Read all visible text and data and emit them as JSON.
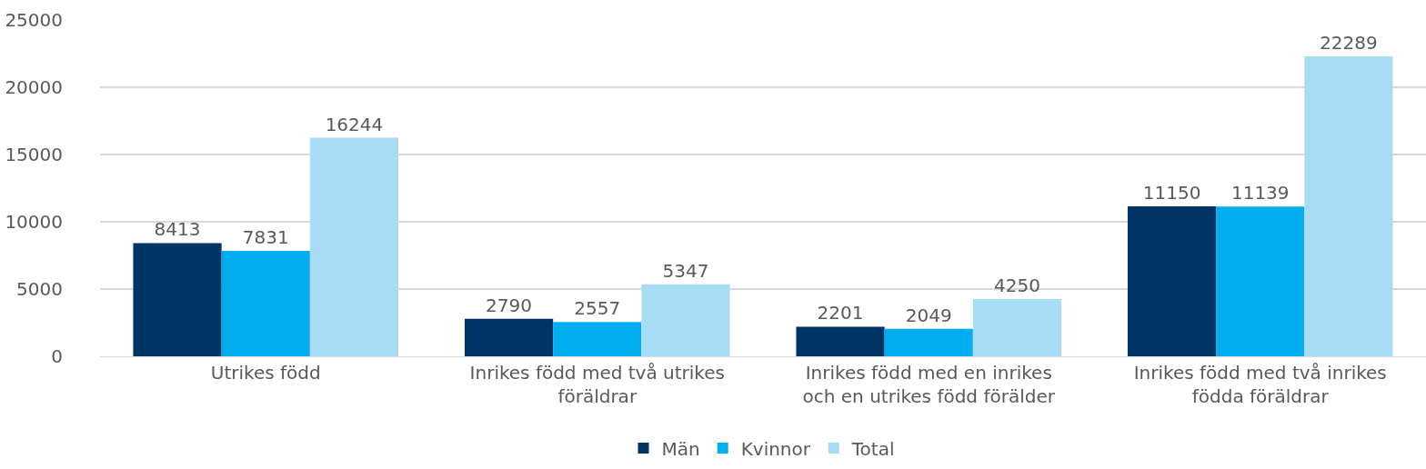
{
  "chart_data": {
    "type": "bar",
    "categories": [
      "Utrikes född",
      "Inrikes född med två utrikes föräldrar",
      "Inrikes född med en inrikes och en utrikes född förälder",
      "Inrikes född med två inrikes födda föräldrar"
    ],
    "series": [
      {
        "name": "Män",
        "color": "#003366",
        "values": [
          8413,
          2790,
          2201,
          11150
        ]
      },
      {
        "name": "Kvinnor",
        "color": "#00aeef",
        "values": [
          7831,
          2557,
          2049,
          11139
        ]
      },
      {
        "name": "Total",
        "color": "#a6dcf4",
        "values": [
          16244,
          5347,
          4250,
          22289
        ]
      }
    ],
    "ylim": [
      0,
      25000
    ],
    "yticks": [
      0,
      5000,
      10000,
      15000,
      20000,
      25000
    ],
    "grid": "y",
    "legend": "bottom",
    "data_labels": true
  }
}
